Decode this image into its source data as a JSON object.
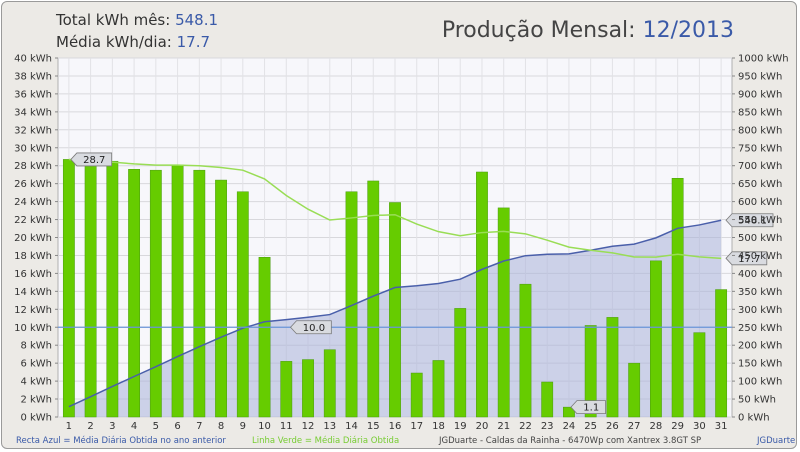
{
  "header": {
    "total_label": "Total kWh mês:",
    "total_value": "548.1",
    "avg_label": "Média kWh/dia:",
    "avg_value": "17.7",
    "title_label": "Produção Mensal:",
    "title_value": "12/2013"
  },
  "footer": {
    "blue_note": "Recta Azul = Média Diária Obtida no ano anterior",
    "green_note": "Linha Verde = Média Diária Obtida",
    "site": "JGDuarte  -  Caldas da Rainha  -  6470Wp com Xantrex 3.8GT SP",
    "author": "JGDuarte"
  },
  "colors": {
    "bar": "#66cc00",
    "bar_dark": "#4a9a10",
    "green_line": "#99dd55",
    "blue_line": "#4a5faa",
    "area_fill": "#a9b3d8",
    "ref_line": "#6a95d8"
  },
  "chart_data": {
    "type": "bar",
    "categories": [
      "1",
      "2",
      "3",
      "4",
      "5",
      "6",
      "7",
      "8",
      "9",
      "10",
      "11",
      "12",
      "13",
      "14",
      "15",
      "16",
      "17",
      "18",
      "19",
      "20",
      "21",
      "22",
      "23",
      "24",
      "25",
      "26",
      "27",
      "28",
      "29",
      "30",
      "31"
    ],
    "left_axis": {
      "unit": "kWh",
      "ylim": [
        0,
        40
      ],
      "step": 2,
      "tick_labels": [
        "0 kWh",
        "2 kWh",
        "4 kWh",
        "6 kWh",
        "8 kWh",
        "10 kWh",
        "12 kWh",
        "14 kWh",
        "16 kWh",
        "18 kWh",
        "20 kWh",
        "22 kWh",
        "24 kWh",
        "26 kWh",
        "28 kWh",
        "30 kWh",
        "32 kWh",
        "34 kWh",
        "36 kWh",
        "38 kWh",
        "40 kWh"
      ]
    },
    "right_axis": {
      "unit": "kWh",
      "ylim": [
        0,
        1000
      ],
      "step": 50,
      "tick_labels": [
        "0 kWh",
        "50 kWh",
        "100 kWh",
        "150 kWh",
        "200 kWh",
        "250 kWh",
        "300 kWh",
        "350 kWh",
        "400 kWh",
        "450 kWh",
        "500 kWh",
        "550 kWh",
        "600 kWh",
        "650 kWh",
        "700 kWh",
        "750 kWh",
        "800 kWh",
        "850 kWh",
        "900 kWh",
        "950 kWh",
        "1000 kWh"
      ]
    },
    "series": [
      {
        "kind": "bar",
        "axis": "left",
        "values": [
          28.7,
          28.0,
          28.5,
          27.6,
          27.5,
          28.1,
          27.5,
          26.4,
          25.1,
          17.8,
          6.2,
          6.4,
          7.5,
          25.1,
          26.3,
          23.9,
          4.9,
          6.3,
          12.1,
          27.3,
          23.3,
          14.8,
          3.9,
          1.1,
          10.2,
          11.1,
          6.0,
          17.4,
          26.6,
          9.4,
          14.2
        ]
      },
      {
        "kind": "line",
        "axis": "left",
        "values": [
          28.7,
          28.35,
          28.4,
          28.2,
          28.06,
          28.07,
          28.0,
          27.8,
          27.5,
          26.53,
          24.68,
          23.15,
          21.95,
          22.18,
          22.45,
          22.54,
          21.5,
          20.65,
          20.2,
          20.55,
          20.68,
          20.41,
          19.7,
          18.93,
          18.58,
          18.29,
          17.83,
          17.82,
          18.13,
          17.84,
          17.68
        ]
      },
      {
        "kind": "area",
        "axis": "right",
        "values": [
          28.7,
          56.7,
          85.2,
          112.8,
          140.3,
          168.4,
          195.9,
          222.3,
          247.4,
          265.2,
          271.4,
          277.8,
          285.3,
          310.4,
          336.7,
          360.6,
          365.5,
          371.8,
          383.9,
          411.2,
          434.5,
          449.3,
          453.2,
          454.3,
          464.5,
          475.6,
          481.6,
          499.0,
          525.6,
          535.0,
          548.1
        ]
      }
    ],
    "reference_line": {
      "axis": "left",
      "value": 10.0,
      "label": "10.0"
    },
    "annotations": [
      {
        "text": "28.7",
        "day": 1,
        "value": 28.7,
        "axis": "left"
      },
      {
        "text": "1.1",
        "day": 24,
        "value": 1.1,
        "axis": "left"
      },
      {
        "text": "548.1",
        "day": 31,
        "value": 548.1,
        "axis": "right"
      },
      {
        "text": "17.7",
        "day": 31,
        "value": 17.68,
        "axis": "left"
      }
    ],
    "grid": true,
    "legend": "bottom"
  }
}
